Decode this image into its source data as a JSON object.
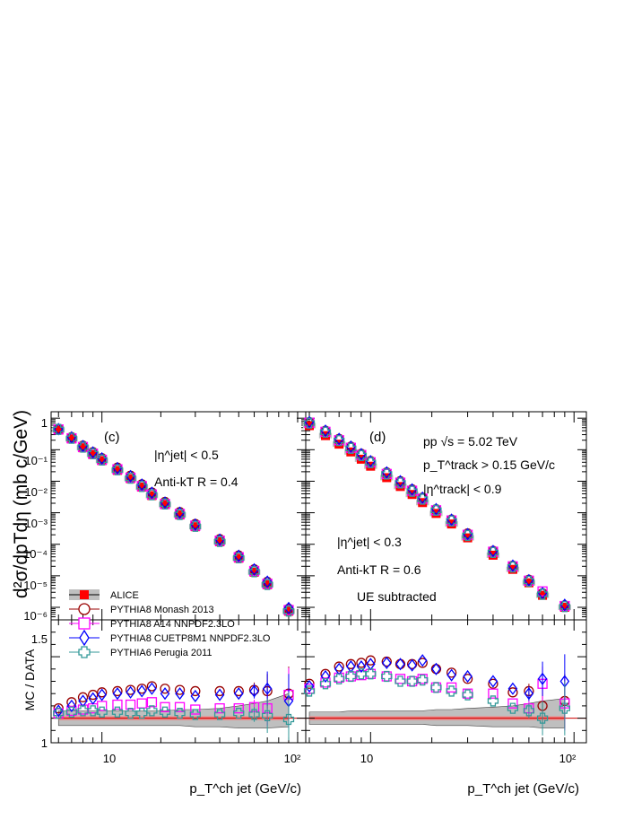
{
  "figure": {
    "y_axis_top_label": "d²σ/dpTdη (mb c/GeV)",
    "y_axis_bottom_label": "MC / DATA",
    "x_axis_label": "p_T^ch jet (GeV/c)",
    "x_tick_labels": [
      "10",
      "10²"
    ],
    "top_y_tick_labels": [
      "1",
      "10⁻¹",
      "10⁻²",
      "10⁻³",
      "10⁻⁴",
      "10⁻⁵",
      "10⁻⁶"
    ],
    "bottom_y_tick_labels": [
      "1",
      "1.5"
    ]
  },
  "panels": [
    {
      "tag": "(c)",
      "annotations": [
        "|η^jet| < 0.5",
        "Anti-kT  R = 0.4"
      ]
    },
    {
      "tag": "(d)",
      "annotations": [
        "pp √s = 5.02 TeV",
        "p_T^track > 0.15 GeV/c",
        "|η^track| < 0.9",
        "|η^jet| < 0.3",
        "Anti-kT  R = 0.6",
        "UE subtracted"
      ]
    }
  ],
  "legend": [
    {
      "label": "ALICE",
      "marker": "filled-square",
      "color": "#ff0000"
    },
    {
      "label": "PYTHIA8 Monash 2013",
      "marker": "open-circle",
      "color": "#990000"
    },
    {
      "label": "PYTHIA8 A14 NNPDF2.3LO",
      "marker": "open-square",
      "color": "#ff00ff"
    },
    {
      "label": "PYTHIA8 CUETP8M1 NNPDF2.3LO",
      "marker": "open-diamond",
      "color": "#0000ff"
    },
    {
      "label": "PYTHIA6 Perugia 2011",
      "marker": "open-cross",
      "color": "#339999"
    }
  ],
  "chart_data": [
    {
      "type": "scatter",
      "panel": "(c) spectrum",
      "x_scale": "log",
      "y_scale": "log",
      "xlim": [
        5.5,
        110
      ],
      "ylim": [
        4e-07,
        1.6
      ],
      "x": [
        6,
        7,
        8,
        9,
        10,
        12,
        14,
        16,
        18,
        21,
        25,
        30,
        40,
        50,
        60,
        70,
        90
      ],
      "series": [
        {
          "name": "ALICE",
          "values": [
            0.42,
            0.22,
            0.115,
            0.07,
            0.045,
            0.022,
            0.012,
            0.0065,
            0.0035,
            0.0018,
            0.00085,
            0.00036,
            0.00012,
            3.6e-05,
            1.3e-05,
            5.2e-06,
            7.5e-07
          ]
        },
        {
          "name": "PYTHIA8 Monash 2013",
          "values": [
            0.46,
            0.25,
            0.135,
            0.084,
            0.054,
            0.027,
            0.015,
            0.008,
            0.0044,
            0.0022,
            0.00105,
            0.00044,
            0.000145,
            4.4e-05,
            1.6e-05,
            6.4e-06,
            9e-07
          ]
        },
        {
          "name": "PYTHIA8 A14 NNPDF2.3LO",
          "values": [
            0.44,
            0.23,
            0.122,
            0.075,
            0.048,
            0.024,
            0.013,
            0.007,
            0.0038,
            0.0019,
            0.00092,
            0.00039,
            0.00013,
            3.9e-05,
            1.42e-05,
            5.6e-06,
            8.2e-07
          ]
        },
        {
          "name": "PYTHIA8 CUETP8M1 NNPDF2.3LO",
          "values": [
            0.45,
            0.245,
            0.13,
            0.082,
            0.053,
            0.026,
            0.0145,
            0.0078,
            0.0043,
            0.0021,
            0.001,
            0.00042,
            0.00014,
            4.3e-05,
            1.6e-05,
            6.5e-06,
            9.5e-07
          ]
        },
        {
          "name": "PYTHIA6 Perugia 2011",
          "values": [
            0.44,
            0.23,
            0.12,
            0.074,
            0.047,
            0.023,
            0.0125,
            0.0068,
            0.0037,
            0.0019,
            0.00088,
            0.00037,
            0.000123,
            3.7e-05,
            1.35e-05,
            5.3e-06,
            7.6e-07
          ]
        }
      ]
    },
    {
      "type": "scatter",
      "panel": "(d) spectrum",
      "x_scale": "log",
      "y_scale": "log",
      "xlim": [
        4.8,
        115
      ],
      "ylim": [
        4e-07,
        1.6
      ],
      "x": [
        5,
        6,
        7,
        8,
        9,
        10,
        12,
        14,
        16,
        18,
        21,
        25,
        30,
        40,
        50,
        60,
        70,
        90
      ],
      "series": [
        {
          "name": "ALICE",
          "values": [
            0.58,
            0.28,
            0.15,
            0.085,
            0.05,
            0.03,
            0.013,
            0.0068,
            0.0038,
            0.0021,
            0.00095,
            0.00044,
            0.00016,
            4.5e-05,
            1.6e-05,
            6e-06,
            2.4e-06,
            1e-06
          ]
        },
        {
          "name": "PYTHIA8 Monash 2013",
          "values": [
            0.75,
            0.4,
            0.22,
            0.125,
            0.074,
            0.044,
            0.019,
            0.01,
            0.0055,
            0.003,
            0.0013,
            0.00061,
            0.00022,
            6.2e-05,
            2.1e-05,
            7.5e-06,
            2.8e-06,
            1.15e-06
          ]
        },
        {
          "name": "PYTHIA8 A14 NNPDF2.3LO",
          "values": [
            0.72,
            0.37,
            0.2,
            0.115,
            0.068,
            0.04,
            0.017,
            0.009,
            0.005,
            0.0028,
            0.0012,
            0.00057,
            0.0002,
            5.8e-05,
            2e-05,
            7e-06,
            3.2e-06,
            1.1e-06
          ]
        },
        {
          "name": "PYTHIA8 CUETP8M1 NNPDF2.3LO",
          "values": [
            0.75,
            0.4,
            0.22,
            0.125,
            0.072,
            0.043,
            0.019,
            0.01,
            0.0055,
            0.003,
            0.0013,
            0.0006,
            0.00021,
            6.1e-05,
            2.1e-05,
            7.2e-06,
            2.8e-06,
            1.2e-06
          ]
        },
        {
          "name": "PYTHIA6 Perugia 2011",
          "values": [
            0.7,
            0.36,
            0.195,
            0.11,
            0.065,
            0.039,
            0.017,
            0.0088,
            0.0048,
            0.0027,
            0.0012,
            0.00055,
            0.00019,
            5.5e-05,
            1.9e-05,
            6.7e-06,
            2.6e-06,
            1.05e-06
          ]
        }
      ]
    },
    {
      "type": "scatter",
      "panel": "(c) ratio",
      "x_scale": "log",
      "xlim": [
        5.5,
        110
      ],
      "ylim": [
        0.8,
        1.8
      ],
      "x": [
        6,
        7,
        8,
        9,
        10,
        12,
        14,
        16,
        18,
        21,
        25,
        30,
        40,
        50,
        60,
        70,
        90
      ],
      "band_upper": [
        1.06,
        1.06,
        1.06,
        1.06,
        1.06,
        1.06,
        1.06,
        1.06,
        1.06,
        1.06,
        1.07,
        1.07,
        1.08,
        1.1,
        1.12,
        1.14,
        1.2
      ],
      "band_lower": [
        0.94,
        0.94,
        0.94,
        0.94,
        0.94,
        0.94,
        0.94,
        0.94,
        0.94,
        0.94,
        0.94,
        0.93,
        0.93,
        0.92,
        0.92,
        0.92,
        0.93
      ],
      "series": [
        {
          "name": "PYTHIA8 Monash 2013",
          "values": [
            1.08,
            1.13,
            1.17,
            1.19,
            1.21,
            1.22,
            1.23,
            1.24,
            1.26,
            1.24,
            1.23,
            1.22,
            1.22,
            1.22,
            1.23,
            1.22,
            1.2
          ]
        },
        {
          "name": "PYTHIA8 A14 NNPDF2.3LO",
          "values": [
            1.04,
            1.06,
            1.07,
            1.08,
            1.1,
            1.11,
            1.11,
            1.12,
            1.13,
            1.09,
            1.09,
            1.07,
            1.08,
            1.08,
            1.09,
            1.08,
            1.19
          ]
        },
        {
          "name": "PYTHIA8 CUETP8M1 NNPDF2.3LO",
          "values": [
            1.06,
            1.1,
            1.14,
            1.16,
            1.19,
            1.2,
            1.21,
            1.22,
            1.24,
            1.2,
            1.2,
            1.18,
            1.19,
            1.2,
            1.22,
            1.24,
            1.14
          ]
        },
        {
          "name": "PYTHIA6 Perugia 2011",
          "values": [
            1.04,
            1.05,
            1.06,
            1.06,
            1.05,
            1.05,
            1.04,
            1.04,
            1.06,
            1.05,
            1.04,
            1.03,
            1.03,
            1.04,
            1.03,
            1.02,
            0.99
          ]
        }
      ]
    },
    {
      "type": "scatter",
      "panel": "(d) ratio",
      "x_scale": "log",
      "xlim": [
        4.8,
        115
      ],
      "ylim": [
        0.8,
        1.8
      ],
      "x": [
        5,
        6,
        7,
        8,
        9,
        10,
        12,
        14,
        16,
        18,
        21,
        25,
        30,
        40,
        50,
        60,
        70,
        90
      ],
      "band_upper": [
        1.05,
        1.05,
        1.05,
        1.06,
        1.06,
        1.06,
        1.06,
        1.06,
        1.06,
        1.06,
        1.07,
        1.07,
        1.08,
        1.09,
        1.1,
        1.12,
        1.14,
        1.16
      ],
      "band_lower": [
        0.95,
        0.95,
        0.95,
        0.95,
        0.95,
        0.95,
        0.95,
        0.95,
        0.95,
        0.95,
        0.94,
        0.94,
        0.94,
        0.93,
        0.93,
        0.93,
        0.92,
        0.92
      ],
      "series": [
        {
          "name": "PYTHIA8 Monash 2013",
          "values": [
            1.28,
            1.36,
            1.42,
            1.44,
            1.45,
            1.47,
            1.46,
            1.44,
            1.44,
            1.45,
            1.4,
            1.37,
            1.32,
            1.28,
            1.21,
            1.22,
            1.1,
            1.14
          ]
        },
        {
          "name": "PYTHIA8 A14 NNPDF2.3LO",
          "values": [
            1.24,
            1.29,
            1.33,
            1.34,
            1.35,
            1.36,
            1.34,
            1.32,
            1.3,
            1.32,
            1.25,
            1.25,
            1.2,
            1.2,
            1.12,
            1.08,
            1.28,
            1.12
          ]
        },
        {
          "name": "PYTHIA8 CUETP8M1 NNPDF2.3LO",
          "values": [
            1.26,
            1.34,
            1.4,
            1.42,
            1.42,
            1.44,
            1.45,
            1.44,
            1.43,
            1.47,
            1.4,
            1.35,
            1.34,
            1.3,
            1.24,
            1.2,
            1.32,
            1.3
          ]
        },
        {
          "name": "PYTHIA6 Perugia 2011",
          "values": [
            1.22,
            1.28,
            1.32,
            1.34,
            1.36,
            1.36,
            1.34,
            1.3,
            1.3,
            1.31,
            1.25,
            1.22,
            1.19,
            1.14,
            1.08,
            1.06,
            1.0,
            1.08
          ]
        }
      ]
    }
  ]
}
